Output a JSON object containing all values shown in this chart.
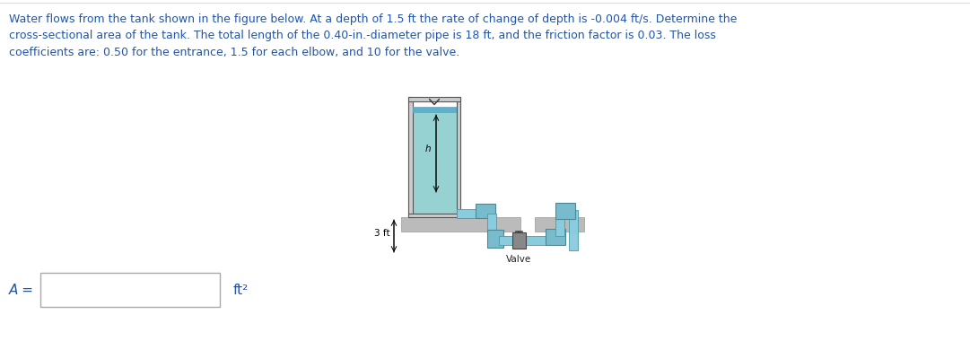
{
  "title_text": "Water flows from the tank shown in the figure below. At a depth of 1.5 ft the rate of change of depth is -0.004 ft/s. Determine the\ncross-sectional area of the tank. The total length of the 0.40-in.-diameter pipe is 18 ft, and the friction factor is 0.03. The loss\ncoefficients are: 0.50 for the entrance, 1.5 for each elbow, and 10 for the valve.",
  "answer_label": "A =",
  "answer_unit": "ft²",
  "background_color": "#ffffff",
  "text_color": "#2255aa",
  "fig_width": 10.81,
  "fig_height": 3.8,
  "water_color": "#88cccc",
  "water_top_color": "#55aacc",
  "pipe_color": "#88ccdd",
  "elbow_color": "#77bbcc",
  "ground_color": "#bbbbbb",
  "tank_wall_color": "#cccccc",
  "valve_color": "#888888"
}
